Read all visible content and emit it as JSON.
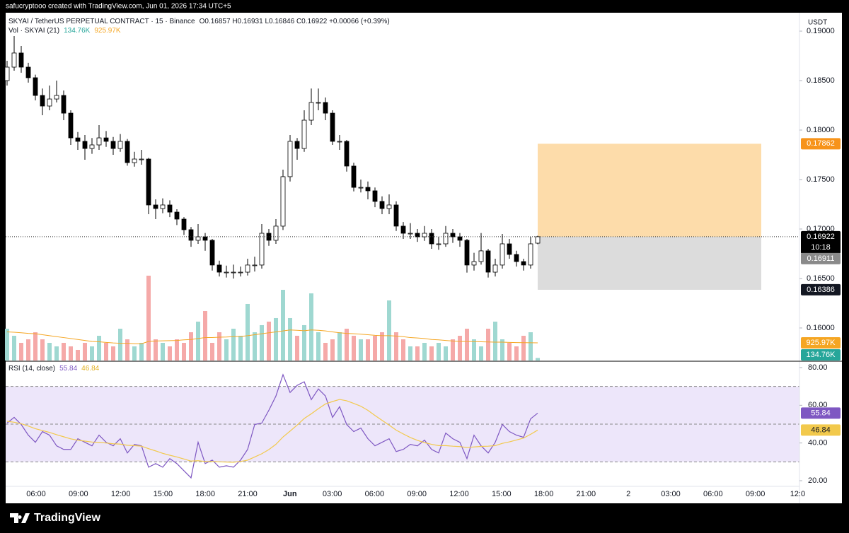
{
  "header": {
    "watermark": "safucryptooo created with TradingView.com, Jun 01, 2026 17:34 UTC+5",
    "symbol": "SKYAI / TetherUS PERPETUAL CONTRACT · 15 · Binance",
    "ohlc": "O0.16857 H0.16931 L0.16846 C0.16922 +0.00066 (+0.39%)",
    "currency": "USDT",
    "countdown": "10:18",
    "brand": "TradingView"
  },
  "chart_data": [
    {
      "type": "candlestick",
      "open": [
        0.185,
        0.18636,
        0.18779,
        0.18636,
        0.18529,
        0.1835,
        0.18243,
        0.18314,
        0.1835,
        0.18171,
        0.17921,
        0.17886,
        0.17814,
        0.1785,
        0.17921,
        0.17886,
        0.17814,
        0.17886,
        0.17671,
        0.17707,
        0.17707,
        0.17243,
        0.17207,
        0.17243,
        0.17171,
        0.171,
        0.16993,
        0.16886,
        0.16921,
        0.16886,
        0.16636,
        0.16564,
        0.16564,
        0.16564,
        0.16564,
        0.16636,
        0.16636,
        0.16957,
        0.16886,
        0.17029,
        0.17529,
        0.17886,
        0.17814,
        0.181,
        0.18279,
        0.18279,
        0.18171,
        0.17886,
        0.17886,
        0.17636,
        0.17421,
        0.17421,
        0.17386,
        0.17279,
        0.17207,
        0.17243,
        0.17029,
        0.16957,
        0.16957,
        0.16921,
        0.16957,
        0.1685,
        0.1685,
        0.16957,
        0.16921,
        0.16886,
        0.16636,
        0.16671,
        0.16779,
        0.16564,
        0.16636,
        0.1685,
        0.16743,
        0.16671,
        0.16636,
        0.16857
      ],
      "high": [
        0.187,
        0.1895,
        0.1885,
        0.1868,
        0.1856,
        0.1842,
        0.1845,
        0.185,
        0.184,
        0.182,
        0.1798,
        0.1795,
        0.1792,
        0.1805,
        0.1799,
        0.1793,
        0.1796,
        0.1791,
        0.1778,
        0.178,
        0.1772,
        0.173,
        0.1731,
        0.1729,
        0.172,
        0.1712,
        0.1702,
        0.1705,
        0.1696,
        0.169,
        0.1668,
        0.1663,
        0.1664,
        0.1662,
        0.167,
        0.1672,
        0.1705,
        0.17,
        0.171,
        0.176,
        0.1795,
        0.1792,
        0.182,
        0.1842,
        0.1842,
        0.1833,
        0.182,
        0.1795,
        0.179,
        0.1767,
        0.175,
        0.1748,
        0.1742,
        0.1733,
        0.1735,
        0.1728,
        0.1707,
        0.1706,
        0.17,
        0.1703,
        0.17,
        0.1692,
        0.1703,
        0.17,
        0.1696,
        0.169,
        0.1676,
        0.1696,
        0.168,
        0.167,
        0.1695,
        0.169,
        0.1678,
        0.167,
        0.1692,
        0.16931
      ],
      "low": [
        0.1845,
        0.186,
        0.1858,
        0.1848,
        0.183,
        0.1815,
        0.182,
        0.1828,
        0.181,
        0.1785,
        0.178,
        0.177,
        0.1776,
        0.178,
        0.1783,
        0.1775,
        0.1778,
        0.1764,
        0.1763,
        0.1765,
        0.1715,
        0.171,
        0.1716,
        0.1712,
        0.1704,
        0.1694,
        0.1682,
        0.1685,
        0.1678,
        0.1658,
        0.1652,
        0.1651,
        0.165,
        0.1652,
        0.1653,
        0.1657,
        0.166,
        0.1683,
        0.1685,
        0.1699,
        0.1748,
        0.177,
        0.1778,
        0.1805,
        0.182,
        0.181,
        0.1785,
        0.178,
        0.1758,
        0.1738,
        0.1737,
        0.173,
        0.1722,
        0.1715,
        0.1715,
        0.1698,
        0.169,
        0.169,
        0.1687,
        0.1688,
        0.168,
        0.1679,
        0.1682,
        0.1686,
        0.1682,
        0.1656,
        0.1658,
        0.1664,
        0.1651,
        0.1652,
        0.166,
        0.167,
        0.1662,
        0.1658,
        0.166,
        0.16846
      ],
      "close": [
        0.18636,
        0.18779,
        0.18636,
        0.18529,
        0.1835,
        0.18243,
        0.18314,
        0.1835,
        0.18171,
        0.17921,
        0.17886,
        0.17814,
        0.1785,
        0.17921,
        0.17886,
        0.17814,
        0.17886,
        0.17671,
        0.17707,
        0.17707,
        0.17243,
        0.17207,
        0.17243,
        0.17171,
        0.171,
        0.16993,
        0.16886,
        0.16921,
        0.16886,
        0.16636,
        0.16564,
        0.16564,
        0.16564,
        0.16564,
        0.16636,
        0.16636,
        0.16957,
        0.16886,
        0.17029,
        0.17529,
        0.17886,
        0.17814,
        0.181,
        0.18279,
        0.18279,
        0.18171,
        0.17886,
        0.17886,
        0.17636,
        0.17421,
        0.17421,
        0.17386,
        0.17279,
        0.17207,
        0.17243,
        0.17029,
        0.16957,
        0.16957,
        0.16921,
        0.16957,
        0.1685,
        0.1685,
        0.16957,
        0.16921,
        0.16886,
        0.16636,
        0.16671,
        0.16779,
        0.16564,
        0.16636,
        0.1685,
        0.16743,
        0.16671,
        0.16636,
        0.1685,
        0.16922
      ],
      "up_color": "#ffffff",
      "down_color": "#000000",
      "ylim": [
        0.15671,
        0.19186
      ],
      "yticks": [
        {
          "value": 0.16,
          "label": "0.16000"
        },
        {
          "value": 0.165,
          "label": "0.16500"
        },
        {
          "value": 0.17,
          "label": "0.17000"
        },
        {
          "value": 0.175,
          "label": "0.17500"
        },
        {
          "value": 0.18,
          "label": "0.18000"
        },
        {
          "value": 0.185,
          "label": "0.18500"
        },
        {
          "value": 0.19,
          "label": "0.19000"
        }
      ],
      "target": 0.17862,
      "stop": 0.16386,
      "mark_price": 0.16911,
      "target_color": "#fddcaa",
      "stop_color": "#dcdcdc"
    },
    {
      "type": "bar",
      "name": "Vol · SKYAI (21)",
      "values": [
        1665000,
        1295000,
        925000,
        1110000,
        1480000,
        1110000,
        925000,
        740000,
        925000,
        740000,
        555000,
        925000,
        740000,
        1295000,
        925000,
        740000,
        1665000,
        1110000,
        740000,
        925000,
        4440000,
        1110000,
        925000,
        740000,
        1110000,
        925000,
        1480000,
        2035000,
        2590000,
        925000,
        1480000,
        1110000,
        1665000,
        1295000,
        2960000,
        1480000,
        1850000,
        2035000,
        2220000,
        3700000,
        2220000,
        1295000,
        1850000,
        3515000,
        1480000,
        925000,
        1110000,
        1480000,
        1665000,
        1295000,
        1110000,
        1110000,
        1295000,
        1480000,
        3145000,
        1480000,
        1110000,
        740000,
        740000,
        925000,
        740000,
        925000,
        740000,
        1110000,
        1295000,
        1665000,
        1110000,
        740000,
        1665000,
        2035000,
        1110000,
        925000,
        740000,
        1295000,
        1480000,
        134760
      ],
      "last_label": "134.76K",
      "up_color": "#9fd8d1",
      "down_color": "#f5a9a8",
      "ylim": [
        0,
        18200000
      ],
      "ma": {
        "color": "#f5a623",
        "last_label": "925.97K",
        "values": [
          1500000,
          1480000,
          1450000,
          1420000,
          1400000,
          1350000,
          1300000,
          1250000,
          1200000,
          1150000,
          1100000,
          1050000,
          1000000,
          980000,
          950000,
          920000,
          900000,
          900000,
          880000,
          880000,
          1000000,
          1020000,
          1030000,
          1040000,
          1050000,
          1080000,
          1100000,
          1150000,
          1200000,
          1200000,
          1220000,
          1230000,
          1250000,
          1260000,
          1300000,
          1350000,
          1400000,
          1450000,
          1500000,
          1550000,
          1600000,
          1580000,
          1560000,
          1600000,
          1580000,
          1550000,
          1500000,
          1450000,
          1420000,
          1400000,
          1380000,
          1350000,
          1320000,
          1300000,
          1300000,
          1280000,
          1250000,
          1200000,
          1180000,
          1150000,
          1100000,
          1080000,
          1050000,
          1020000,
          1000000,
          1000000,
          990000,
          980000,
          970000,
          960000,
          960000,
          950000,
          940000,
          935000,
          930000,
          925970
        ]
      }
    },
    {
      "type": "line",
      "title": "RSI (14, close)",
      "series": [
        {
          "color": "#7e57c2",
          "values": [
            50.57,
            53.58,
            49.81,
            44.15,
            40.38,
            46.04,
            44.15,
            38.49,
            36.6,
            36.6,
            42.26,
            40.38,
            38.49,
            44.15,
            40.38,
            38.49,
            42.26,
            34.72,
            39.25,
            38.49,
            27.17,
            29.06,
            27.17,
            31.7,
            29.06,
            25.28,
            21.51,
            40.38,
            29.06,
            30.94,
            27.17,
            27.92,
            27.17,
            30.94,
            36.6,
            49.81,
            50.57,
            57.36,
            64.91,
            76.23,
            66.79,
            70.57,
            72.45,
            63.02,
            68.68,
            64.91,
            53.58,
            59.25,
            49.81,
            46.04,
            47.92,
            42.26,
            38.49,
            40.38,
            42.26,
            35.47,
            36.6,
            39.25,
            38.49,
            41.51,
            36.6,
            34.72,
            45.28,
            42.26,
            40.38,
            31.7,
            44.15,
            38.49,
            34.72,
            40.38,
            49.81,
            46.04,
            44.15,
            43.02,
            52.83,
            55.84
          ]
        },
        {
          "color": "#f2c94c",
          "values": [
            51.5,
            51.0,
            50.2,
            49.0,
            47.6,
            46.6,
            45.6,
            44.4,
            43.3,
            42.2,
            41.5,
            41.0,
            40.5,
            40.3,
            40.0,
            39.6,
            39.4,
            38.8,
            38.6,
            38.3,
            37.0,
            35.8,
            34.5,
            33.5,
            32.6,
            31.5,
            30.4,
            30.6,
            30.2,
            30.2,
            30.0,
            29.9,
            29.8,
            30.2,
            30.9,
            32.6,
            34.3,
            36.5,
            39.3,
            43.2,
            46.3,
            49.5,
            53.0,
            55.5,
            58.2,
            60.7,
            62.0,
            63.1,
            62.4,
            61.0,
            59.5,
            57.3,
            54.6,
            52.0,
            49.5,
            46.8,
            44.8,
            42.9,
            41.4,
            40.2,
            39.3,
            38.6,
            38.6,
            38.3,
            38.1,
            37.6,
            37.9,
            38.2,
            38.3,
            38.6,
            39.8,
            40.6,
            41.6,
            42.6,
            44.6,
            46.84
          ]
        }
      ],
      "ylim": [
        17,
        83
      ],
      "yticks": [
        {
          "value": 20,
          "label": "20.00"
        },
        {
          "value": 40,
          "label": "40.00"
        },
        {
          "value": 60,
          "label": "60.00"
        },
        {
          "value": 80,
          "label": "80.00"
        }
      ],
      "bands": [
        30,
        50,
        70
      ],
      "band_color": "#ede6fa",
      "x_labels": [
        "06:00",
        "09:00",
        "12:00",
        "15:00",
        "18:00",
        "21:00",
        "Jun",
        "03:00",
        "06:00",
        "09:00",
        "12:00",
        "15:00",
        "18:00",
        "21:00",
        "2",
        "03:00",
        "06:00",
        "09:00",
        "12:0"
      ]
    }
  ]
}
